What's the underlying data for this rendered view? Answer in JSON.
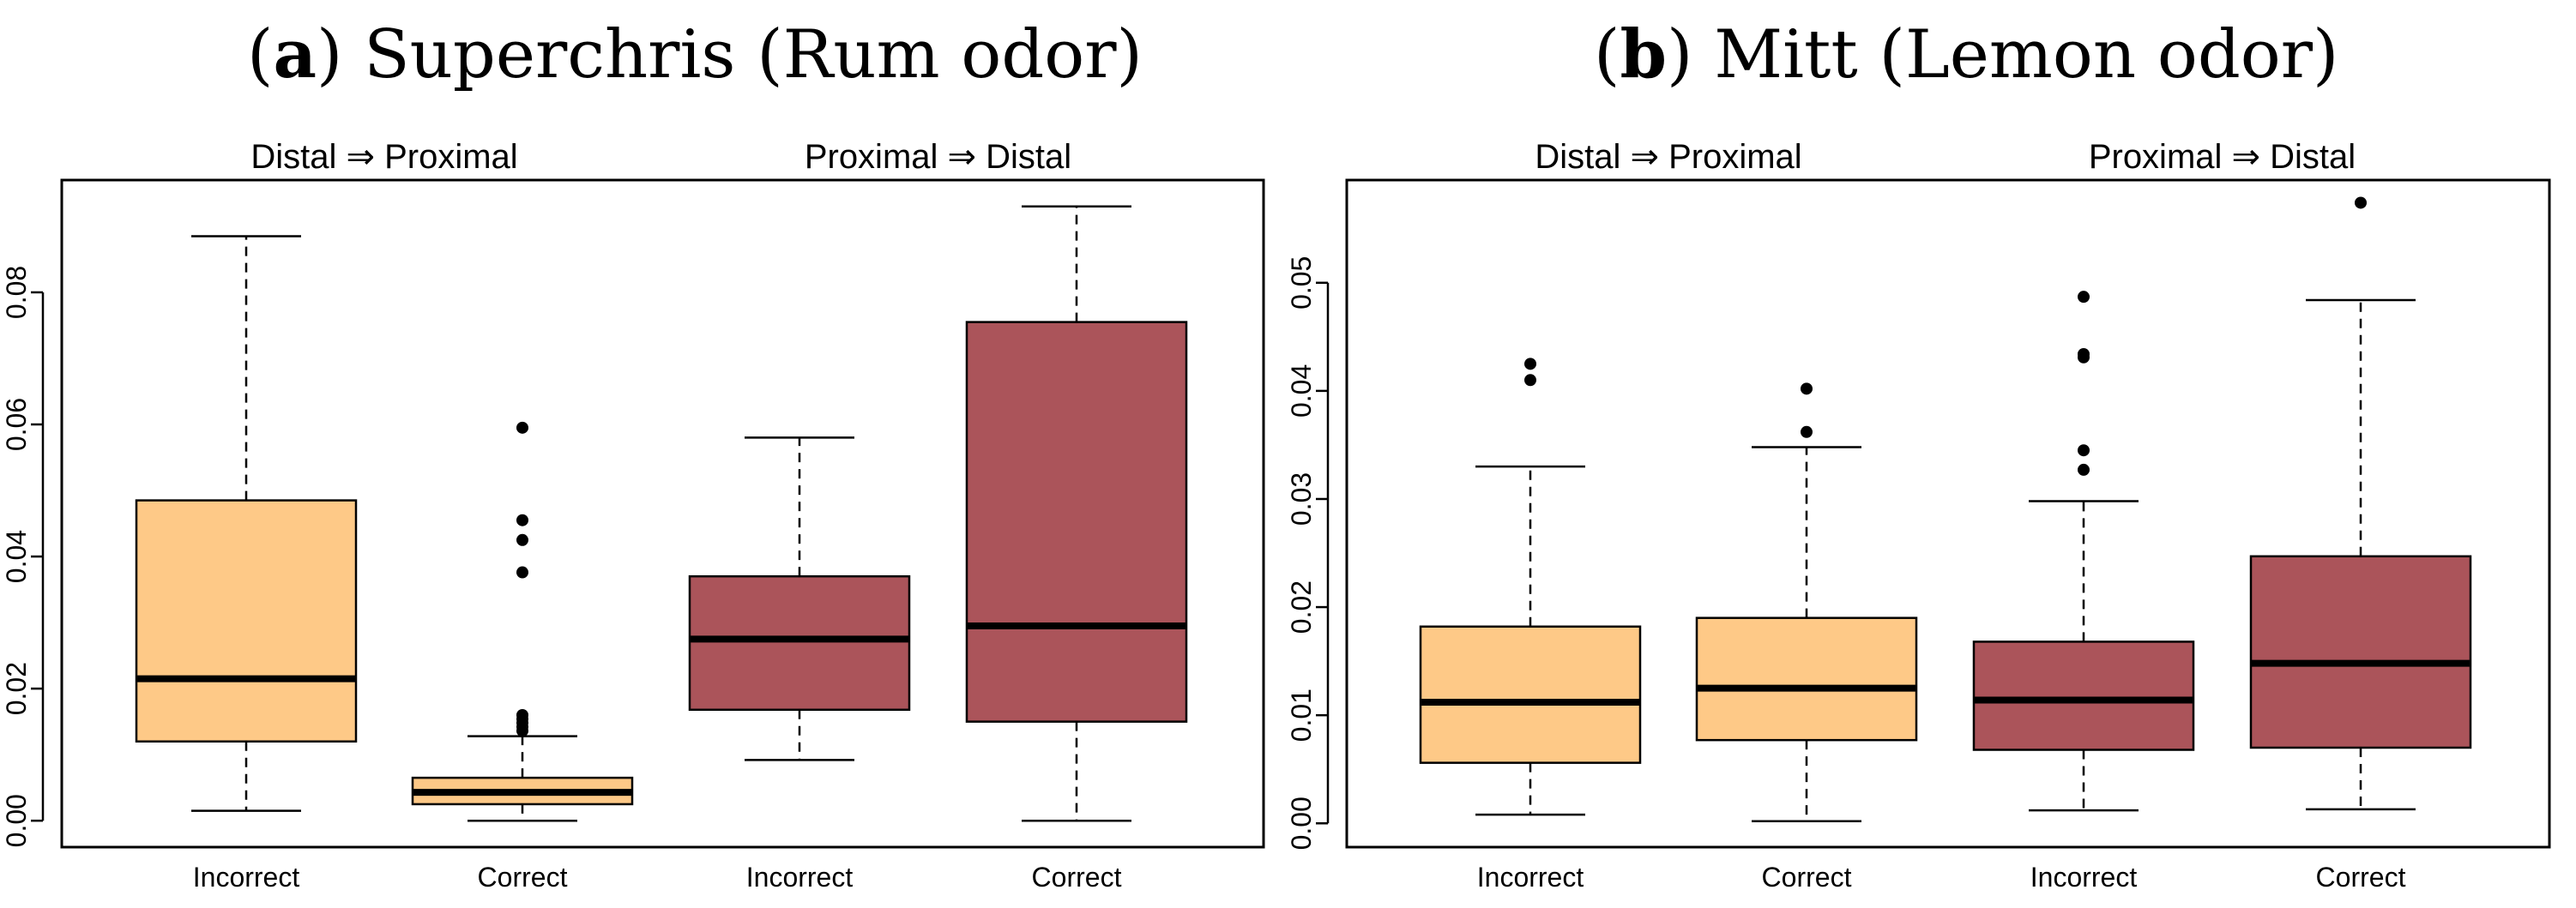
{
  "figure": {
    "panel_a": {
      "letter": "a",
      "title": "Superchris (Rum odor)"
    },
    "panel_b": {
      "letter": "b",
      "title": "Mitt (Lemon odor)"
    }
  },
  "colors": {
    "incorrect_fill": "#fec987",
    "correct_fill": "#ab545a",
    "median": "#000000",
    "axis": "#000000"
  },
  "chart_data": [
    {
      "type": "boxplot",
      "title": "(a) Superchris (Rum odor)",
      "group_labels": [
        "Distal ⇒ Proximal",
        "Proximal ⇒ Distal"
      ],
      "categories": [
        "Incorrect",
        "Correct",
        "Incorrect",
        "Correct"
      ],
      "fill_keys": [
        "incorrect_fill",
        "incorrect_fill",
        "correct_fill",
        "correct_fill"
      ],
      "ylim": [
        -0.004,
        0.097
      ],
      "yticks": [
        0.0,
        0.02,
        0.04,
        0.06,
        0.08
      ],
      "ytick_labels": [
        "0.00",
        "0.02",
        "0.04",
        "0.06",
        "0.08"
      ],
      "boxes": [
        {
          "whisker_low": 0.0015,
          "q1": 0.012,
          "median": 0.0215,
          "q3": 0.0485,
          "whisker_high": 0.0885,
          "outliers": []
        },
        {
          "whisker_low": 0.0,
          "q1": 0.0025,
          "median": 0.0043,
          "q3": 0.0065,
          "whisker_high": 0.0128,
          "outliers": [
            0.0136,
            0.0142,
            0.0148,
            0.0154,
            0.016,
            0.0376,
            0.0425,
            0.0455,
            0.0595
          ]
        },
        {
          "whisker_low": 0.0092,
          "q1": 0.0168,
          "median": 0.0275,
          "q3": 0.037,
          "whisker_high": 0.058,
          "outliers": []
        },
        {
          "whisker_low": 0.0,
          "q1": 0.015,
          "median": 0.0295,
          "q3": 0.0755,
          "whisker_high": 0.093,
          "outliers": []
        }
      ]
    },
    {
      "type": "boxplot",
      "title": "(b) Mitt (Lemon odor)",
      "group_labels": [
        "Distal ⇒ Proximal",
        "Proximal ⇒ Distal"
      ],
      "categories": [
        "Incorrect",
        "Correct",
        "Incorrect",
        "Correct"
      ],
      "fill_keys": [
        "incorrect_fill",
        "incorrect_fill",
        "correct_fill",
        "correct_fill"
      ],
      "ylim": [
        -0.0022,
        0.0595
      ],
      "yticks": [
        0.0,
        0.01,
        0.02,
        0.03,
        0.04,
        0.05
      ],
      "ytick_labels": [
        "0.00",
        "0.01",
        "0.02",
        "0.03",
        "0.04",
        "0.05"
      ],
      "boxes": [
        {
          "whisker_low": 0.0008,
          "q1": 0.0056,
          "median": 0.0112,
          "q3": 0.0182,
          "whisker_high": 0.033,
          "outliers": [
            0.041,
            0.0425
          ]
        },
        {
          "whisker_low": 0.0002,
          "q1": 0.0077,
          "median": 0.0125,
          "q3": 0.019,
          "whisker_high": 0.0348,
          "outliers": [
            0.0362,
            0.0402
          ]
        },
        {
          "whisker_low": 0.0012,
          "q1": 0.0068,
          "median": 0.0114,
          "q3": 0.0168,
          "whisker_high": 0.0298,
          "outliers": [
            0.0327,
            0.0345,
            0.0431,
            0.0434,
            0.0487
          ]
        },
        {
          "whisker_low": 0.0013,
          "q1": 0.007,
          "median": 0.0148,
          "q3": 0.0247,
          "whisker_high": 0.0484,
          "outliers": [
            0.0574
          ]
        }
      ]
    }
  ]
}
